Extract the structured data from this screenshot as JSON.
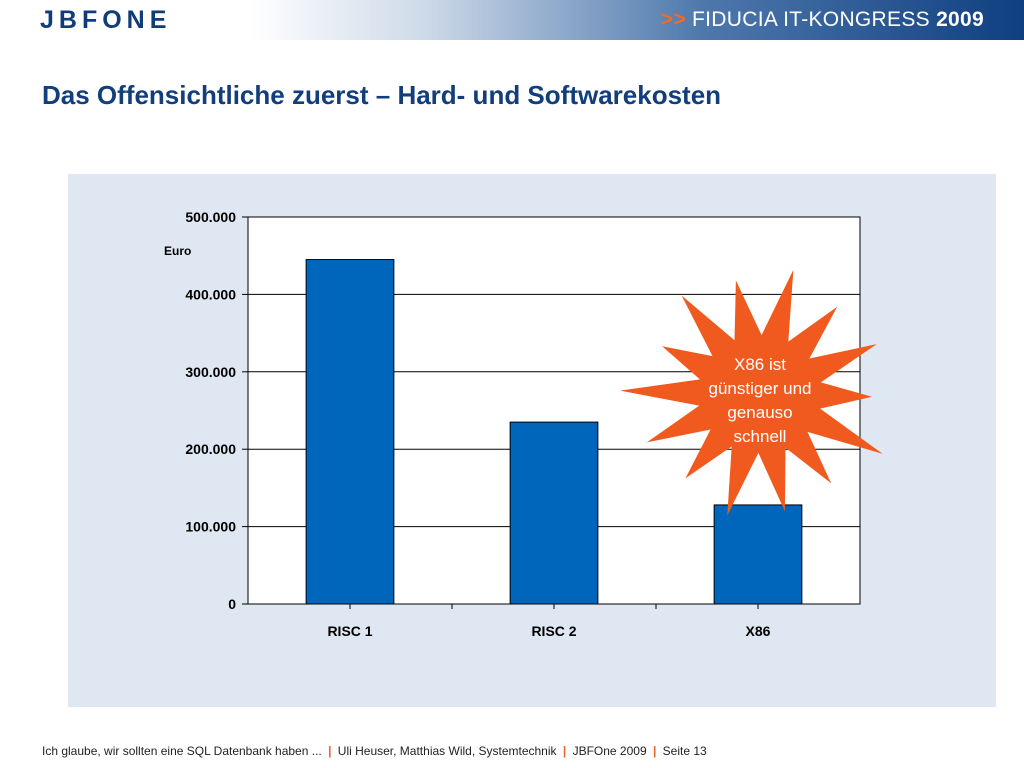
{
  "header": {
    "logo": "JBFONE",
    "congress_prefix": ">>",
    "congress_name": "FIDUCIA IT-KONGRESS",
    "congress_year": "2009"
  },
  "slide": {
    "title": "Das Offensichtliche zuerst – Hard- und Softwarekosten"
  },
  "chart_data": {
    "type": "bar",
    "categories": [
      "RISC 1",
      "RISC 2",
      "X86"
    ],
    "values": [
      445000,
      235000,
      128000
    ],
    "unit": "Euro",
    "ylim": [
      0,
      500000
    ],
    "yticks": [
      0,
      100000,
      200000,
      300000,
      400000,
      500000
    ],
    "ytick_labels": [
      "0",
      "100.000",
      "200.000",
      "300.000",
      "400.000",
      "500.000"
    ],
    "grid": true,
    "bar_color": "#0066bb",
    "annotation": {
      "lines": [
        "X86 ist",
        "günstiger und",
        "genauso",
        "schnell"
      ],
      "color": "#f05a1e"
    }
  },
  "footer": {
    "part1": "Ich glaube, wir sollten eine SQL Datenbank haben ...",
    "part2": "Uli Heuser, Matthias Wild, Systemtechnik",
    "part3": "JBFOne 2009",
    "part4": "Seite 13",
    "separator": "|"
  }
}
